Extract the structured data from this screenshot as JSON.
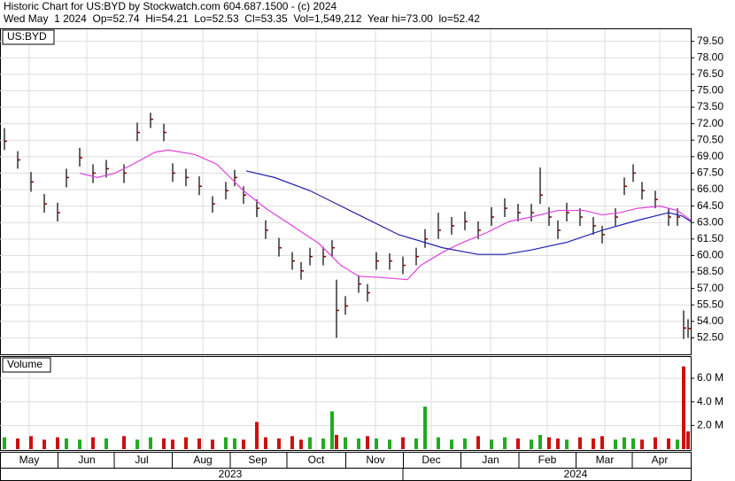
{
  "chart_data": {
    "type": "ohlc",
    "header": [
      "Historic Chart for US:BYD by Stockwatch.com 604.687.1500 - (c) 2024",
      "Wed May  1 2024  Op=52.74  Hi=54.21  Lo=52.53  Cl=53.35  Vol=1,549,212  Year hi=73.00  lo=52.42"
    ],
    "symbol": "US:BYD",
    "volume_label": "Volume",
    "x": [
      5,
      20,
      35,
      50,
      65,
      75,
      90,
      105,
      120,
      140,
      155,
      170,
      185,
      195,
      210,
      225,
      240,
      255,
      265,
      275,
      290,
      300,
      315,
      330,
      340,
      350,
      365,
      375,
      380,
      390,
      405,
      415,
      425,
      440,
      455,
      470,
      480,
      495,
      510,
      525,
      540,
      555,
      570,
      585,
      600,
      610,
      620,
      630,
      640,
      655,
      670,
      680,
      695,
      705,
      715,
      725,
      740,
      755,
      765,
      772,
      777
    ],
    "high": [
      71.6,
      69.5,
      67.6,
      65.6,
      64.8,
      67.9,
      69.8,
      68.3,
      68.7,
      68.3,
      72.1,
      73.0,
      72.0,
      68.4,
      67.9,
      67.2,
      65.4,
      66.7,
      67.8,
      66.3,
      65.1,
      63.2,
      61.6,
      60.3,
      59.4,
      60.7,
      60.8,
      61.4,
      57.8,
      56.3,
      58.2,
      57.4,
      60.3,
      60.2,
      59.9,
      60.7,
      62.4,
      63.9,
      63.5,
      64.0,
      63.1,
      64.4,
      65.2,
      64.7,
      64.7,
      68.0,
      64.4,
      63.2,
      64.8,
      64.3,
      63.5,
      62.7,
      64.3,
      67.1,
      68.3,
      66.7,
      65.9,
      64.3,
      64.3,
      55.0,
      54.2
    ],
    "low": [
      69.6,
      67.9,
      65.8,
      63.9,
      63.1,
      66.2,
      68.1,
      66.6,
      67.1,
      66.6,
      70.4,
      71.6,
      70.4,
      66.7,
      66.3,
      65.5,
      63.9,
      65.1,
      66.3,
      64.7,
      63.5,
      61.5,
      59.9,
      58.7,
      57.8,
      59.1,
      59.1,
      59.9,
      52.5,
      54.6,
      56.6,
      55.8,
      58.7,
      58.7,
      58.3,
      59.1,
      60.7,
      61.5,
      61.9,
      62.3,
      61.5,
      62.7,
      63.5,
      63.1,
      63.1,
      64.7,
      62.7,
      61.5,
      63.1,
      62.7,
      61.9,
      61.1,
      62.7,
      65.5,
      66.7,
      65.1,
      64.3,
      62.7,
      62.7,
      52.4,
      52.5
    ],
    "close": [
      70.4,
      68.7,
      66.7,
      64.7,
      63.9,
      67.1,
      68.9,
      67.5,
      67.9,
      67.5,
      71.2,
      72.4,
      71.2,
      67.5,
      67.1,
      66.3,
      64.7,
      65.9,
      67.1,
      65.5,
      64.3,
      62.3,
      60.7,
      59.5,
      58.6,
      59.9,
      59.9,
      60.7,
      55.0,
      55.4,
      57.4,
      56.6,
      59.5,
      59.5,
      59.1,
      59.9,
      61.5,
      62.3,
      62.7,
      63.1,
      62.3,
      63.5,
      64.3,
      63.9,
      63.9,
      65.5,
      63.5,
      62.3,
      63.9,
      63.5,
      62.7,
      61.9,
      63.5,
      66.3,
      67.5,
      65.9,
      65.1,
      63.5,
      63.5,
      53.4,
      53.35
    ],
    "volume": [
      1.0,
      0.9,
      1.1,
      0.8,
      1.0,
      0.9,
      0.8,
      1.0,
      0.9,
      1.1,
      0.8,
      1.0,
      0.9,
      0.8,
      1.0,
      0.9,
      0.8,
      1.0,
      0.9,
      0.8,
      2.3,
      1.0,
      0.9,
      1.1,
      0.8,
      1.0,
      0.9,
      3.2,
      1.2,
      1.0,
      0.9,
      1.1,
      0.9,
      0.8,
      1.0,
      0.9,
      3.6,
      1.0,
      0.8,
      0.9,
      1.1,
      0.8,
      1.0,
      0.9,
      0.8,
      1.2,
      1.0,
      0.9,
      0.8,
      1.0,
      0.9,
      1.1,
      0.8,
      1.0,
      0.9,
      0.8,
      1.0,
      0.9,
      0.8,
      7.0,
      1.5
    ],
    "ma_short": {
      "color": "#e040e0",
      "x": [
        90,
        110,
        130,
        150,
        175,
        190,
        220,
        245,
        260,
        275,
        300,
        330,
        360,
        385,
        405,
        430,
        460,
        475,
        500,
        520,
        550,
        575,
        600,
        630,
        660,
        680,
        700,
        720,
        745,
        765,
        780
      ],
      "values": [
        67.5,
        67.1,
        67.5,
        68.3,
        69.4,
        69.6,
        69.2,
        68.3,
        67.1,
        65.9,
        64.3,
        62.7,
        61.1,
        59.1,
        58.1,
        58.0,
        57.8,
        59.1,
        60.3,
        61.1,
        62.1,
        63.1,
        63.5,
        64.1,
        64.1,
        63.7,
        63.9,
        64.3,
        64.5,
        64.1,
        63.2
      ]
    },
    "ma_long": {
      "color": "#2020b0",
      "x": [
        278,
        310,
        350,
        400,
        450,
        500,
        540,
        570,
        600,
        640,
        680,
        720,
        755,
        770,
        780
      ],
      "values": [
        67.7,
        67.1,
        65.9,
        63.9,
        61.9,
        60.7,
        60.1,
        60.1,
        60.5,
        61.2,
        62.3,
        63.2,
        63.9,
        63.6,
        63.1
      ]
    },
    "up_color": "#22aa22",
    "down_color": "#cc1111",
    "bar_color": "#8b0000",
    "xlim": [
      0,
      780
    ],
    "ylim": [
      51,
      80.6
    ],
    "yticks": [
      {
        "value": 52.5,
        "label": "52.50"
      },
      {
        "value": 54,
        "label": "54.00"
      },
      {
        "value": 55.5,
        "label": "55.50"
      },
      {
        "value": 57,
        "label": "57.00"
      },
      {
        "value": 58.5,
        "label": "58.50"
      },
      {
        "value": 60,
        "label": "60.00"
      },
      {
        "value": 61.5,
        "label": "61.50"
      },
      {
        "value": 63,
        "label": "63.00"
      },
      {
        "value": 64.5,
        "label": "64.50"
      },
      {
        "value": 66,
        "label": "66.00"
      },
      {
        "value": 67.5,
        "label": "67.50"
      },
      {
        "value": 69,
        "label": "69.00"
      },
      {
        "value": 70.5,
        "label": "70.50"
      },
      {
        "value": 72,
        "label": "72.00"
      },
      {
        "value": 73.5,
        "label": "73.50"
      },
      {
        "value": 75,
        "label": "75.00"
      },
      {
        "value": 76.5,
        "label": "76.50"
      },
      {
        "value": 78,
        "label": "78.00"
      },
      {
        "value": 79.5,
        "label": "79.50"
      }
    ],
    "y2lim": [
      0,
      7.8
    ],
    "y2ticks": [
      {
        "value": 2,
        "label": "2.0 M"
      },
      {
        "value": 4,
        "label": "4.0 M"
      },
      {
        "value": 6,
        "label": "6.0 M"
      }
    ],
    "xticks": [
      {
        "value": 33,
        "label": "May"
      },
      {
        "value": 98,
        "label": "Jun"
      },
      {
        "value": 160,
        "label": "Jul"
      },
      {
        "value": 229,
        "label": "Aug"
      },
      {
        "value": 291,
        "label": "Sep"
      },
      {
        "value": 357,
        "label": "Oct"
      },
      {
        "value": 424,
        "label": "Nov"
      },
      {
        "value": 487,
        "label": "Dec"
      },
      {
        "value": 554,
        "label": "Jan"
      },
      {
        "value": 618,
        "label": "Feb"
      },
      {
        "value": 683,
        "label": "Mar"
      },
      {
        "value": 745,
        "label": "Apr"
      }
    ],
    "years": [
      {
        "value": 260,
        "label": "2023"
      },
      {
        "value": 650,
        "label": "2024"
      }
    ],
    "grid": true
  }
}
